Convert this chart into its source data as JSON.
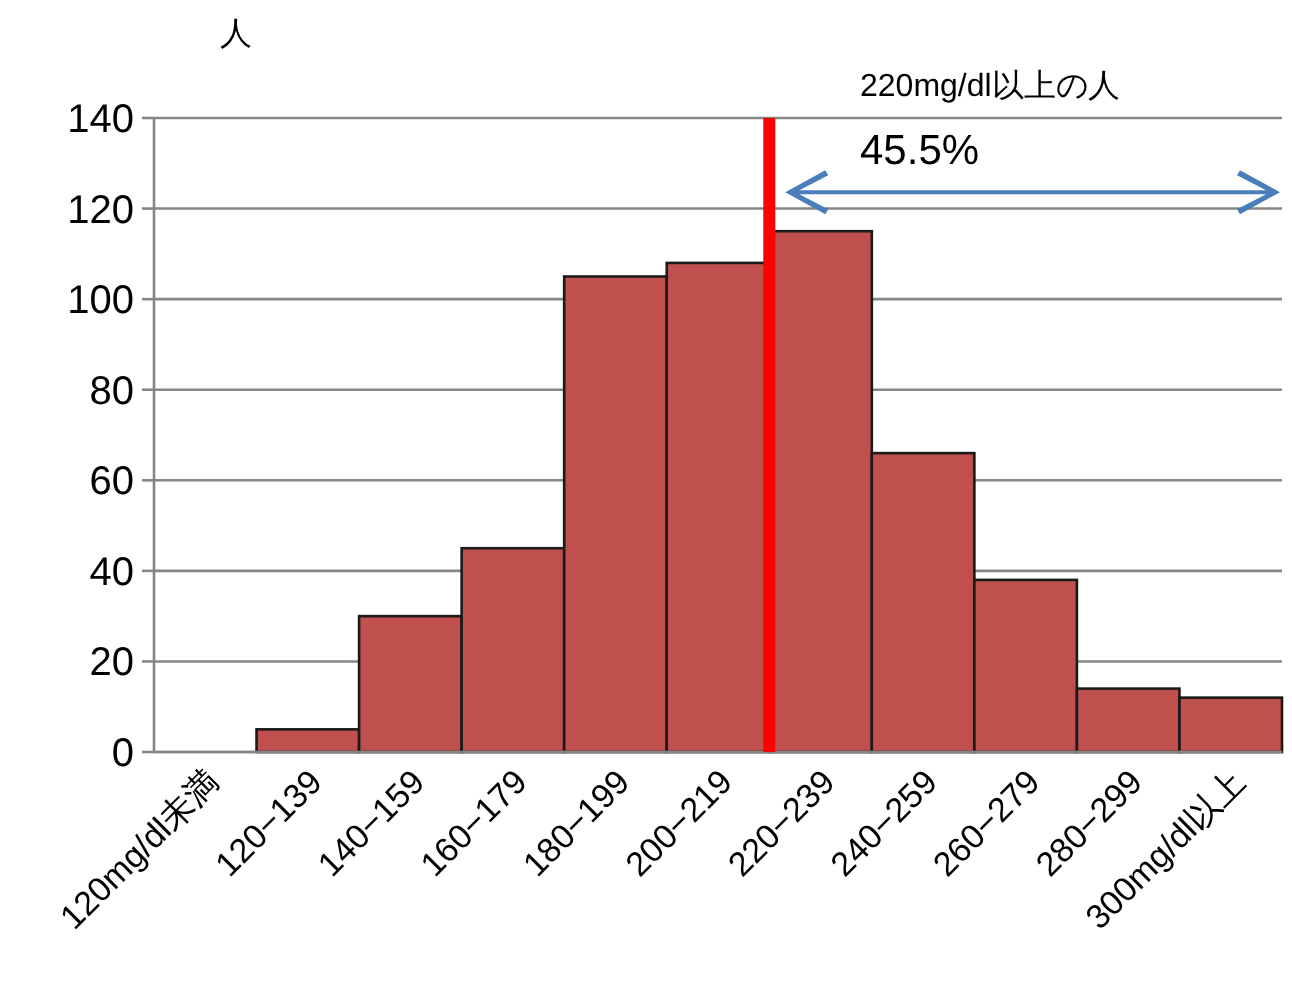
{
  "chart_data": {
    "type": "bar",
    "ylabel": "人",
    "categories": [
      "120mg/dl未満",
      "120−139",
      "140−159",
      "160−179",
      "180−199",
      "200−219",
      "220−239",
      "240−259",
      "260−279",
      "280−299",
      "300mg/dl以上"
    ],
    "values": [
      0,
      5,
      30,
      45,
      105,
      108,
      115,
      66,
      38,
      14,
      12
    ],
    "color": "#c0504d",
    "ylim": [
      0,
      140
    ],
    "yticks": [
      0,
      20,
      40,
      60,
      80,
      100,
      120,
      140
    ],
    "grid": "y",
    "ref_lines": [
      {
        "axis": "x",
        "value": "220−239",
        "color": "#ff0000"
      }
    ],
    "annotations": [
      "220mg/dl以上の人",
      "45.5%"
    ]
  }
}
